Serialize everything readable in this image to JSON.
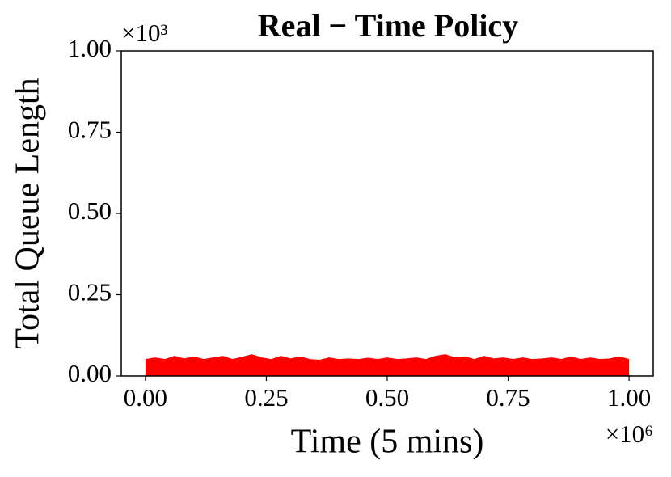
{
  "chart_data": {
    "type": "area",
    "title": "Real − Time Policy",
    "xlabel": "Time (5 mins)",
    "ylabel": "Total Queue Length",
    "x_offset_label": "×10⁶",
    "y_offset_label": "×10³",
    "color": "#ff0000",
    "x": [
      0,
      0.02,
      0.04,
      0.06,
      0.08,
      0.1,
      0.12,
      0.14,
      0.16,
      0.18,
      0.2,
      0.22,
      0.24,
      0.26,
      0.28,
      0.3,
      0.32,
      0.34,
      0.36,
      0.38,
      0.4,
      0.42,
      0.44,
      0.46,
      0.48,
      0.5,
      0.52,
      0.54,
      0.56,
      0.58,
      0.6,
      0.62,
      0.64,
      0.66,
      0.68,
      0.7,
      0.72,
      0.74,
      0.76,
      0.78,
      0.8,
      0.82,
      0.84,
      0.86,
      0.88,
      0.9,
      0.92,
      0.94,
      0.96,
      0.98,
      1.0
    ],
    "values": [
      0.05,
      0.055,
      0.05,
      0.06,
      0.052,
      0.058,
      0.05,
      0.055,
      0.06,
      0.05,
      0.057,
      0.065,
      0.055,
      0.05,
      0.06,
      0.052,
      0.058,
      0.05,
      0.048,
      0.055,
      0.05,
      0.052,
      0.05,
      0.054,
      0.05,
      0.055,
      0.05,
      0.052,
      0.055,
      0.05,
      0.06,
      0.065,
      0.055,
      0.058,
      0.05,
      0.06,
      0.052,
      0.055,
      0.05,
      0.055,
      0.05,
      0.052,
      0.055,
      0.05,
      0.058,
      0.05,
      0.055,
      0.05,
      0.052,
      0.058,
      0.05
    ],
    "xlim": [
      -0.05,
      1.05
    ],
    "ylim": [
      0,
      1
    ],
    "xticks": [
      {
        "value": 0,
        "label": "0.00"
      },
      {
        "value": 0.25,
        "label": "0.25"
      },
      {
        "value": 0.5,
        "label": "0.50"
      },
      {
        "value": 0.75,
        "label": "0.75"
      },
      {
        "value": 1,
        "label": "1.00"
      }
    ],
    "yticks": [
      {
        "value": 0,
        "label": "0.00"
      },
      {
        "value": 0.25,
        "label": "0.25"
      },
      {
        "value": 0.5,
        "label": "0.50"
      },
      {
        "value": 0.75,
        "label": "0.75"
      },
      {
        "value": 1,
        "label": "1.00"
      }
    ],
    "grid": false
  }
}
